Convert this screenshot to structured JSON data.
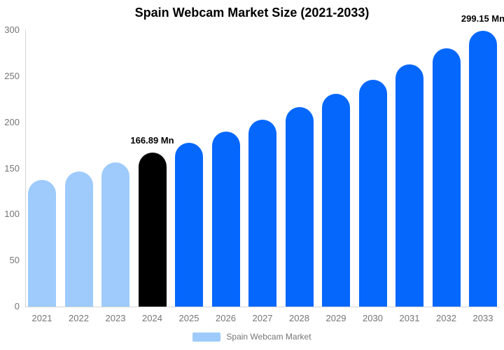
{
  "title": "Spain Webcam Market Size (2021-2033)",
  "legend": {
    "label": "Spain Webcam Market",
    "swatch_color": "#9ecbfb"
  },
  "colors": {
    "historical_light_blue": "#9ecbfb",
    "highlight_black": "#000000",
    "forecast_blue": "#0667fd",
    "axis_line": "#d4d4d4",
    "tick_text": "#757575",
    "title_text": "#000000"
  },
  "chart_data": {
    "type": "bar",
    "title": "Spain Webcam Market Size (2021-2033)",
    "series_name": "Spain Webcam Market",
    "unit": "Mn",
    "categories": [
      "2021",
      "2022",
      "2023",
      "2024",
      "2025",
      "2026",
      "2027",
      "2028",
      "2029",
      "2030",
      "2031",
      "2032",
      "2033"
    ],
    "values": [
      137.4,
      146.6,
      156.4,
      166.89,
      178.1,
      190.0,
      202.7,
      216.3,
      230.8,
      246.3,
      262.8,
      280.4,
      299.15
    ],
    "bar_colors": [
      "#9ecbfb",
      "#9ecbfb",
      "#9ecbfb",
      "#000000",
      "#0667fd",
      "#0667fd",
      "#0667fd",
      "#0667fd",
      "#0667fd",
      "#0667fd",
      "#0667fd",
      "#0667fd",
      "#0667fd"
    ],
    "data_labels": [
      {
        "index": 3,
        "text": "166.89 Mn"
      },
      {
        "index": 12,
        "text": "299.15 Mn"
      }
    ],
    "ylim": [
      0,
      300
    ],
    "yticks": [
      0,
      50,
      100,
      150,
      200,
      250,
      300
    ],
    "xlabel": "",
    "ylabel": "",
    "grid": false,
    "legend_position": "bottom"
  }
}
